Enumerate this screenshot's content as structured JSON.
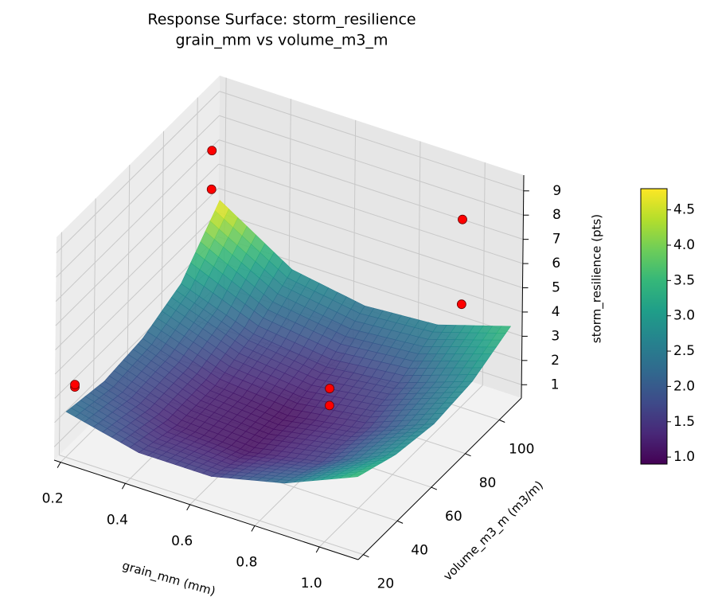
{
  "chart_data": {
    "type": "surface3d",
    "title": "Response Surface: storm_resilience",
    "subtitle": "grain_mm vs volume_m3_m",
    "xlabel": "grain_mm (mm)",
    "ylabel": "volume_m3_m (m3/m)",
    "zlabel": "storm_resilience (pts)",
    "xlim": [
      0.18,
      1.12
    ],
    "ylim": [
      17,
      113
    ],
    "zlim": [
      0.45,
      9.65
    ],
    "xticks": [
      0.2,
      0.4,
      0.6,
      0.8,
      {
        "value": 1,
        "label": "1.0"
      }
    ],
    "yticks": [
      20,
      40,
      60,
      80,
      100
    ],
    "zticks": [
      1,
      2,
      3,
      4,
      5,
      6,
      7,
      8,
      9
    ],
    "surface": {
      "x": [
        0.2,
        0.425,
        0.65,
        0.875,
        1.1
      ],
      "y": [
        20,
        42.5,
        65,
        87.5,
        110
      ],
      "z": [
        [
          2.33,
          2.02,
          2.22,
          2.92,
          4.8
        ],
        [
          1.62,
          1.19,
          1.26,
          1.83,
          2.92
        ],
        [
          1.62,
          1.06,
          1.01,
          1.45,
          2.41
        ],
        [
          2.33,
          1.64,
          1.46,
          1.78,
          2.61
        ],
        [
          3.58,
          2.93,
          2.63,
          2.82,
          3.53
        ]
      ]
    },
    "colormap": "viridis",
    "clim": [
      0.9,
      4.8
    ],
    "cticks": [
      {
        "value": 1,
        "label": "1.0"
      },
      1.5,
      {
        "value": 2,
        "label": "2.0"
      },
      2.5,
      {
        "value": 3,
        "label": "3.0"
      },
      3.5,
      {
        "value": 4,
        "label": "4.0"
      },
      4.5
    ],
    "points": {
      "color": "#ff0000",
      "x": [
        0.2,
        0.2,
        1.0,
        1.0,
        0.2,
        0.2,
        0.7,
        0.7
      ],
      "y": [
        105,
        105,
        100,
        100,
        25,
        25,
        80,
        80
      ],
      "z": [
        7.2,
        5.6,
        8.2,
        4.7,
        3.0,
        3.1,
        1.3,
        0.6
      ]
    },
    "grid": true
  }
}
